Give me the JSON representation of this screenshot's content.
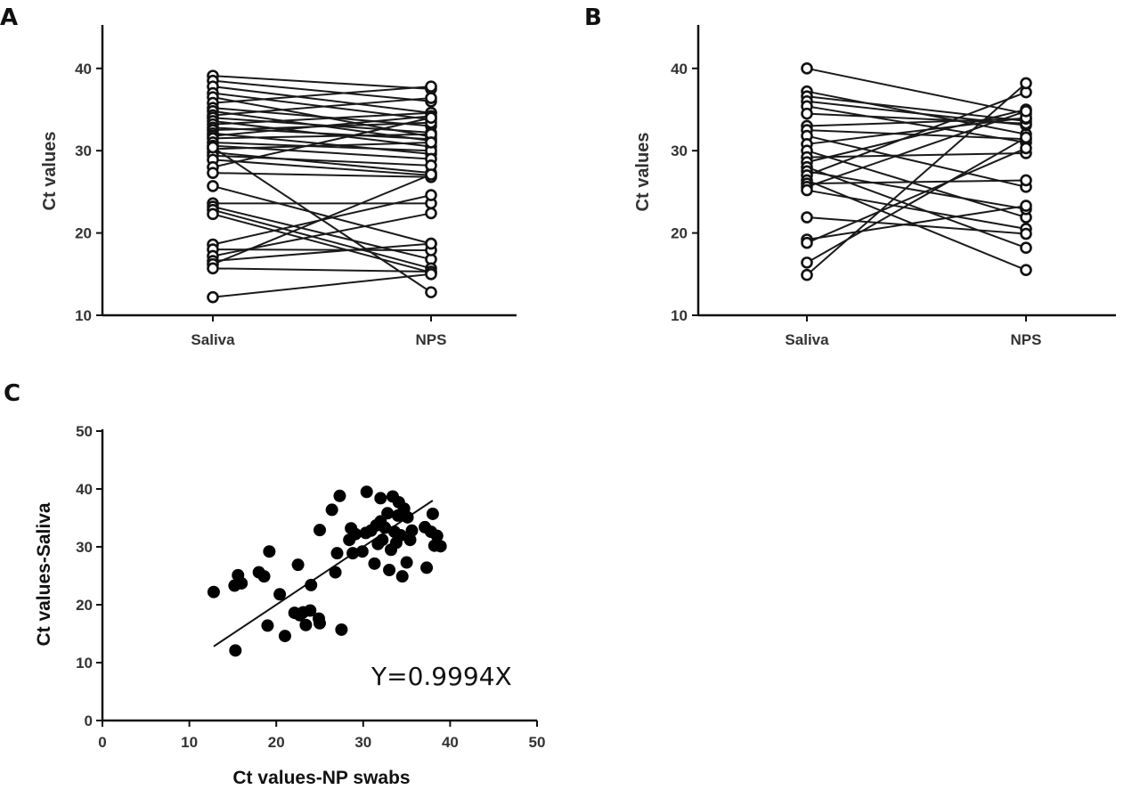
{
  "panels": [
    "A",
    "B",
    "C"
  ],
  "chart_data": [
    {
      "panel": "A",
      "type": "line",
      "categories": [
        "Saliva",
        "NPS"
      ],
      "ylabel": "Ct values",
      "ylim": [
        10,
        45
      ],
      "yticks": [
        10,
        20,
        30,
        40
      ],
      "marker": "open-circle",
      "pairs": [
        [
          39.1,
          37.5
        ],
        [
          38.5,
          36.0
        ],
        [
          37.8,
          34.6
        ],
        [
          37.0,
          33.8
        ],
        [
          36.5,
          31.7
        ],
        [
          35.8,
          37.8
        ],
        [
          35.2,
          33.0
        ],
        [
          34.8,
          31.2
        ],
        [
          34.3,
          36.4
        ],
        [
          34.0,
          32.2
        ],
        [
          33.6,
          30.5
        ],
        [
          33.2,
          34.6
        ],
        [
          32.8,
          31.4
        ],
        [
          32.5,
          33.4
        ],
        [
          32.1,
          29.6
        ],
        [
          31.8,
          34.2
        ],
        [
          31.5,
          32.0
        ],
        [
          31.0,
          30.0
        ],
        [
          30.6,
          29.0
        ],
        [
          30.2,
          31.0
        ],
        [
          29.8,
          27.3
        ],
        [
          29.4,
          28.2
        ],
        [
          28.9,
          27.0
        ],
        [
          28.0,
          34.0
        ],
        [
          27.3,
          26.8
        ],
        [
          25.7,
          18.7
        ],
        [
          23.6,
          23.6
        ],
        [
          23.2,
          16.8
        ],
        [
          22.8,
          15.7
        ],
        [
          22.3,
          15.2
        ],
        [
          18.6,
          24.6
        ],
        [
          18.0,
          17.9
        ],
        [
          17.2,
          22.4
        ],
        [
          16.6,
          18.7
        ],
        [
          16.2,
          27.1
        ],
        [
          15.7,
          15.3
        ],
        [
          12.2,
          15.0
        ],
        [
          30.4,
          12.8
        ]
      ]
    },
    {
      "panel": "B",
      "type": "line",
      "categories": [
        "Saliva",
        "NPS"
      ],
      "ylabel": "Ct values",
      "ylim": [
        10,
        45
      ],
      "yticks": [
        10,
        20,
        30,
        40
      ],
      "marker": "open-circle",
      "pairs": [
        [
          40.0,
          34.5
        ],
        [
          37.2,
          32.0
        ],
        [
          36.6,
          33.6
        ],
        [
          36.0,
          33.1
        ],
        [
          35.4,
          31.0
        ],
        [
          34.5,
          33.3
        ],
        [
          33.0,
          33.9
        ],
        [
          32.5,
          31.4
        ],
        [
          31.8,
          25.6
        ],
        [
          30.8,
          34.0
        ],
        [
          30.0,
          21.9
        ],
        [
          29.2,
          29.7
        ],
        [
          28.6,
          35.0
        ],
        [
          28.0,
          18.2
        ],
        [
          27.5,
          22.9
        ],
        [
          27.0,
          37.1
        ],
        [
          26.4,
          15.5
        ],
        [
          26.0,
          26.4
        ],
        [
          25.6,
          34.8
        ],
        [
          25.2,
          20.5
        ],
        [
          21.9,
          19.9
        ],
        [
          19.2,
          23.3
        ],
        [
          18.8,
          30.3
        ],
        [
          16.4,
          31.6
        ],
        [
          14.9,
          38.2
        ]
      ]
    },
    {
      "panel": "C",
      "type": "scatter",
      "xlabel": "Ct values-NP swabs",
      "ylabel": "Ct values-Saliva",
      "xlim": [
        0,
        50
      ],
      "ylim": [
        0,
        50
      ],
      "xticks": [
        0,
        10,
        20,
        30,
        40,
        50
      ],
      "yticks": [
        0,
        10,
        20,
        30,
        40,
        50
      ],
      "annotation": "Y=0.9994X",
      "fit_line": {
        "x": [
          12.8,
          38.0
        ],
        "y": [
          12.8,
          38.0
        ]
      },
      "points": [
        [
          12.8,
          22.2
        ],
        [
          15.3,
          12.1
        ],
        [
          15.2,
          23.3
        ],
        [
          15.6,
          25.1
        ],
        [
          16.0,
          23.7
        ],
        [
          18.0,
          25.6
        ],
        [
          18.6,
          24.9
        ],
        [
          19.0,
          16.4
        ],
        [
          19.2,
          29.2
        ],
        [
          20.4,
          21.8
        ],
        [
          21.0,
          14.6
        ],
        [
          22.1,
          18.6
        ],
        [
          22.5,
          26.9
        ],
        [
          22.7,
          18.2
        ],
        [
          23.1,
          18.7
        ],
        [
          23.4,
          16.5
        ],
        [
          23.9,
          19.0
        ],
        [
          24.0,
          23.4
        ],
        [
          24.9,
          17.6
        ],
        [
          25.0,
          16.8
        ],
        [
          25.0,
          32.9
        ],
        [
          26.4,
          36.4
        ],
        [
          26.8,
          25.6
        ],
        [
          27.0,
          28.9
        ],
        [
          27.3,
          38.8
        ],
        [
          27.5,
          15.7
        ],
        [
          28.4,
          31.2
        ],
        [
          28.6,
          33.2
        ],
        [
          28.8,
          28.9
        ],
        [
          29.1,
          32.2
        ],
        [
          29.9,
          29.2
        ],
        [
          30.3,
          32.4
        ],
        [
          30.4,
          39.5
        ],
        [
          30.9,
          32.8
        ],
        [
          31.3,
          27.1
        ],
        [
          31.5,
          33.7
        ],
        [
          31.7,
          30.5
        ],
        [
          32.0,
          38.4
        ],
        [
          32.0,
          34.4
        ],
        [
          32.2,
          31.2
        ],
        [
          32.5,
          33.3
        ],
        [
          32.8,
          35.8
        ],
        [
          33.0,
          26.0
        ],
        [
          33.2,
          29.5
        ],
        [
          33.4,
          38.7
        ],
        [
          33.6,
          32.6
        ],
        [
          33.8,
          30.7
        ],
        [
          34.0,
          35.4
        ],
        [
          34.1,
          37.7
        ],
        [
          34.3,
          32.0
        ],
        [
          34.5,
          24.9
        ],
        [
          34.7,
          36.6
        ],
        [
          35.0,
          27.3
        ],
        [
          35.1,
          35.1
        ],
        [
          35.4,
          31.2
        ],
        [
          35.6,
          32.8
        ],
        [
          37.1,
          33.4
        ],
        [
          37.3,
          26.4
        ],
        [
          37.8,
          32.6
        ],
        [
          38.0,
          35.7
        ],
        [
          38.2,
          30.2
        ],
        [
          38.5,
          31.9
        ],
        [
          38.9,
          30.1
        ]
      ]
    }
  ]
}
